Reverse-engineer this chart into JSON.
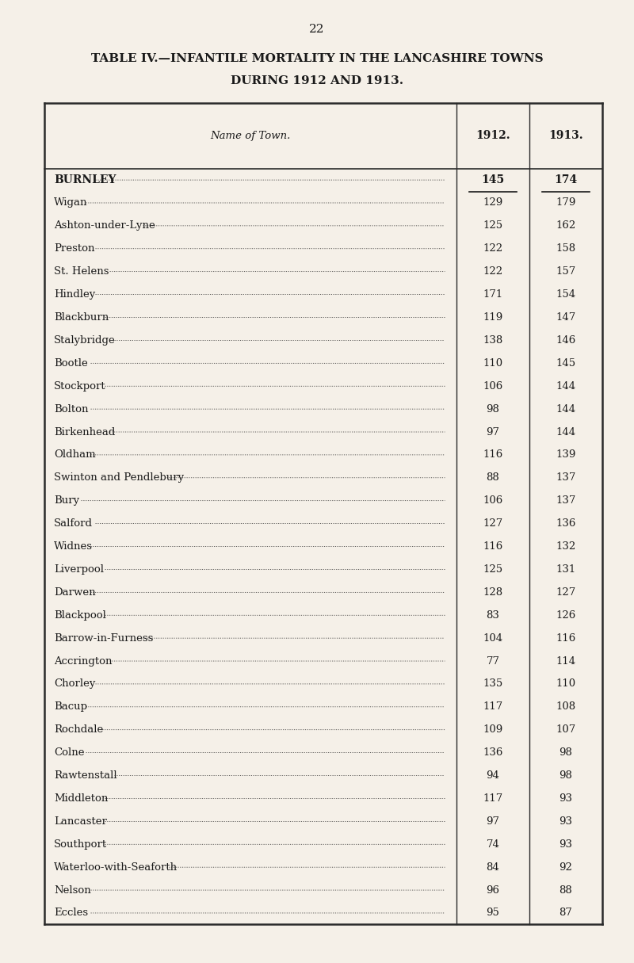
{
  "page_number": "22",
  "title_line1": "TABLE IV.—INFANTILE MORTALITY IN THE LANCASHIRE TOWNS",
  "title_line2": "DURING 1912 AND 1913.",
  "col_header_town": "Name of Town.",
  "col_header_1912": "1912.",
  "col_header_1913": "1913.",
  "rows": [
    {
      "town": "BURNLEY",
      "val1912": "145",
      "val1913": "174",
      "bold": true
    },
    {
      "town": "Wigan",
      "val1912": "129",
      "val1913": "179",
      "bold": false
    },
    {
      "town": "Ashton-under-Lyne",
      "val1912": "125",
      "val1913": "162",
      "bold": false
    },
    {
      "town": "Preston",
      "val1912": "122",
      "val1913": "158",
      "bold": false
    },
    {
      "town": "St. Helens",
      "val1912": "122",
      "val1913": "157",
      "bold": false
    },
    {
      "town": "Hindley",
      "val1912": "171",
      "val1913": "154",
      "bold": false
    },
    {
      "town": "Blackburn",
      "val1912": "119",
      "val1913": "147",
      "bold": false
    },
    {
      "town": "Stalybridge",
      "val1912": "138",
      "val1913": "146",
      "bold": false
    },
    {
      "town": "Bootle",
      "val1912": "110",
      "val1913": "145",
      "bold": false
    },
    {
      "town": "Stockport",
      "val1912": "106",
      "val1913": "144",
      "bold": false
    },
    {
      "town": "Bolton",
      "val1912": "98",
      "val1913": "144",
      "bold": false
    },
    {
      "town": "Birkenhead",
      "val1912": "97",
      "val1913": "144",
      "bold": false
    },
    {
      "town": "Oldham",
      "val1912": "116",
      "val1913": "139",
      "bold": false
    },
    {
      "town": "Swinton and Pendlebury",
      "val1912": "88",
      "val1913": "137",
      "bold": false
    },
    {
      "town": "Bury",
      "val1912": "106",
      "val1913": "137",
      "bold": false
    },
    {
      "town": "Salford",
      "val1912": "127",
      "val1913": "136",
      "bold": false
    },
    {
      "town": "Widnes",
      "val1912": "116",
      "val1913": "132",
      "bold": false
    },
    {
      "town": "Liverpool",
      "val1912": "125",
      "val1913": "131",
      "bold": false
    },
    {
      "town": "Darwen",
      "val1912": "128",
      "val1913": "127",
      "bold": false
    },
    {
      "town": "Blackpool",
      "val1912": "83",
      "val1913": "126",
      "bold": false
    },
    {
      "town": "Barrow-in-Furness",
      "val1912": "104",
      "val1913": "116",
      "bold": false
    },
    {
      "town": "Accrington",
      "val1912": "77",
      "val1913": "114",
      "bold": false
    },
    {
      "town": "Chorley",
      "val1912": "135",
      "val1913": "110",
      "bold": false
    },
    {
      "town": "Bacup",
      "val1912": "117",
      "val1913": "108",
      "bold": false
    },
    {
      "town": "Rochdale",
      "val1912": "109",
      "val1913": "107",
      "bold": false
    },
    {
      "town": "Colne",
      "val1912": "136",
      "val1913": "98",
      "bold": false
    },
    {
      "town": "Rawtenstall",
      "val1912": "94",
      "val1913": "98",
      "bold": false
    },
    {
      "town": "Middleton",
      "val1912": "117",
      "val1913": "93",
      "bold": false
    },
    {
      "town": "Lancaster",
      "val1912": "97",
      "val1913": "93",
      "bold": false
    },
    {
      "town": "Southport",
      "val1912": "74",
      "val1913": "93",
      "bold": false
    },
    {
      "town": "Waterloo-with-Seaforth",
      "val1912": "84",
      "val1913": "92",
      "bold": false
    },
    {
      "town": "Nelson",
      "val1912": "96",
      "val1913": "88",
      "bold": false
    },
    {
      "town": "Eccles",
      "val1912": "95",
      "val1913": "87",
      "bold": false
    }
  ],
  "bg_color": "#f5f0e8",
  "text_color": "#1a1a1a",
  "table_bg": "#f5f0e8",
  "border_color": "#2a2a2a"
}
